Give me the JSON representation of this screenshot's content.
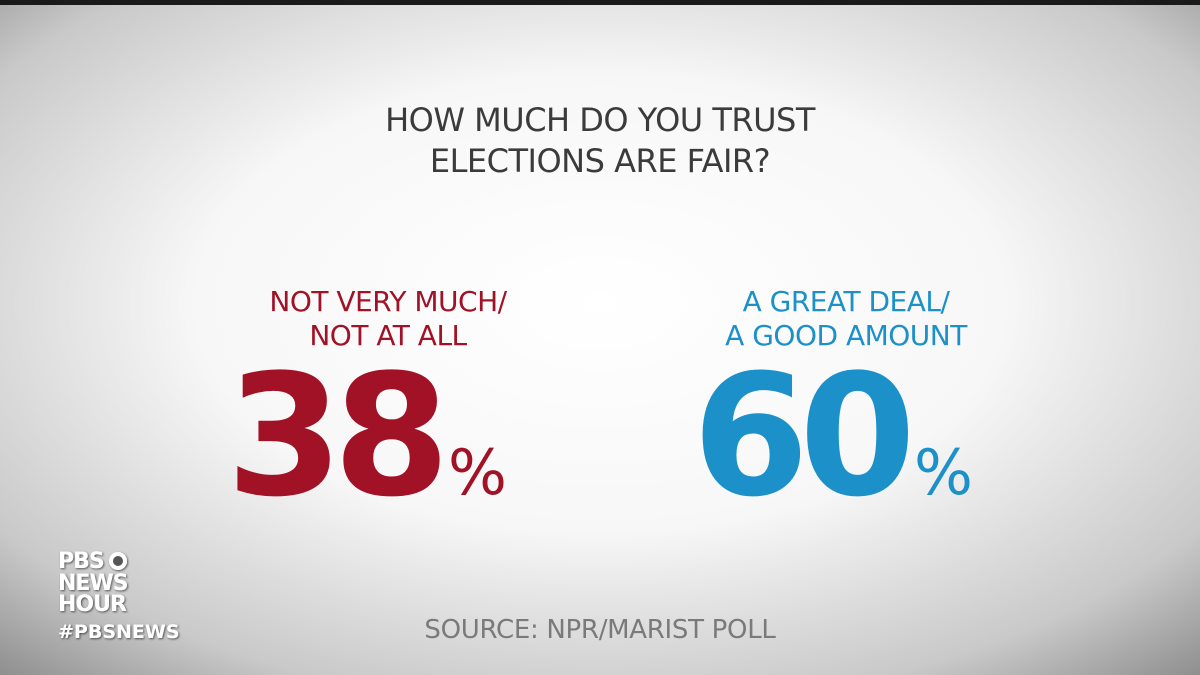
{
  "title_lines": [
    "HOW MUCH DO YOU TRUST",
    "ELECTIONS ARE FAIR?"
  ],
  "stats": [
    {
      "label_lines": [
        "NOT VERY MUCH/",
        "NOT AT ALL"
      ],
      "value": 38,
      "unit": "%"
    },
    {
      "label_lines": [
        "A GREAT DEAL/",
        "A GOOD AMOUNT"
      ],
      "value": 60,
      "unit": "%"
    }
  ],
  "source": "SOURCE: NPR/MARIST POLL",
  "logo_lines": [
    "PBS",
    "NEWS",
    "HOUR"
  ],
  "hashtag": "#PBSNEWS"
}
